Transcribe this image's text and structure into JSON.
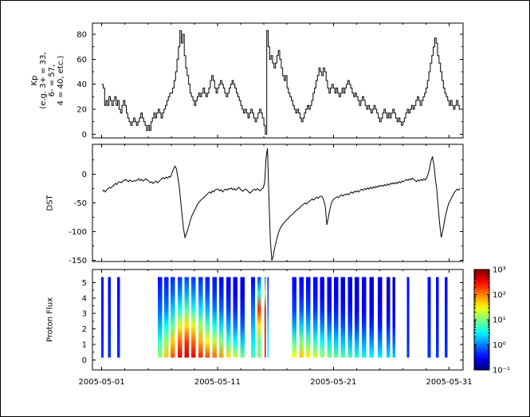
{
  "figure": {
    "background": "#ffffff",
    "frame_color": "#000000",
    "line_color": "#000000"
  },
  "x_axis": {
    "domain_days": [
      0.2,
      32.2
    ],
    "ticks": [
      {
        "day": 1,
        "label": "2005-05-01"
      },
      {
        "day": 11,
        "label": "2005-05-11"
      },
      {
        "day": 21,
        "label": "2005-05-21"
      },
      {
        "day": 31,
        "label": "2005-05-31"
      }
    ],
    "minor_days": [
      3,
      5,
      7,
      9,
      13,
      15,
      17,
      19,
      23,
      25,
      27,
      29
    ]
  },
  "chart_data": [
    {
      "type": "line",
      "panel": "kp",
      "step_mode": true,
      "ylabel_lines": [
        "Kp",
        "(e.g. 3+ = 33,",
        "6- = 57,",
        "4 = 40, etc.)"
      ],
      "ylim": [
        -3,
        89
      ],
      "yticks": [
        0,
        20,
        40,
        60,
        80
      ],
      "yminor": [
        10,
        30,
        50,
        70
      ],
      "x_start_day": 1.0,
      "x_step_days": 0.125,
      "values": [
        40,
        37,
        23,
        27,
        23,
        30,
        27,
        23,
        27,
        30,
        23,
        27,
        20,
        17,
        23,
        27,
        23,
        17,
        13,
        10,
        7,
        10,
        13,
        10,
        7,
        10,
        13,
        17,
        13,
        10,
        7,
        3,
        7,
        3,
        10,
        13,
        17,
        13,
        17,
        20,
        17,
        13,
        17,
        20,
        23,
        27,
        30,
        33,
        33,
        37,
        43,
        50,
        60,
        70,
        83,
        73,
        80,
        63,
        53,
        47,
        40,
        33,
        30,
        27,
        23,
        27,
        30,
        33,
        30,
        33,
        37,
        33,
        30,
        33,
        37,
        43,
        47,
        43,
        37,
        33,
        37,
        40,
        43,
        40,
        37,
        33,
        30,
        33,
        37,
        40,
        43,
        40,
        37,
        33,
        30,
        27,
        23,
        20,
        17,
        20,
        17,
        13,
        17,
        20,
        17,
        13,
        10,
        13,
        17,
        20,
        17,
        13,
        7,
        0,
        83,
        70,
        60,
        63,
        57,
        53,
        57,
        63,
        67,
        60,
        53,
        47,
        43,
        47,
        37,
        33,
        30,
        27,
        23,
        20,
        17,
        20,
        17,
        13,
        10,
        13,
        17,
        20,
        23,
        20,
        23,
        27,
        33,
        37,
        43,
        47,
        53,
        50,
        47,
        53,
        50,
        43,
        37,
        33,
        37,
        40,
        37,
        33,
        37,
        33,
        30,
        33,
        37,
        33,
        37,
        40,
        43,
        40,
        37,
        33,
        30,
        33,
        30,
        27,
        23,
        27,
        30,
        27,
        23,
        20,
        23,
        20,
        17,
        20,
        23,
        20,
        17,
        13,
        10,
        13,
        17,
        20,
        17,
        13,
        17,
        13,
        17,
        20,
        17,
        13,
        10,
        13,
        10,
        7,
        10,
        13,
        17,
        20,
        17,
        20,
        23,
        20,
        23,
        27,
        30,
        27,
        23,
        27,
        30,
        33,
        37,
        43,
        50,
        57,
        63,
        70,
        77,
        73,
        63,
        57,
        50,
        43,
        37,
        33,
        30,
        27,
        23,
        27,
        23,
        20,
        23,
        27,
        23,
        20
      ]
    },
    {
      "type": "line",
      "panel": "dst",
      "step_mode": false,
      "ylabel_lines": [
        "DST"
      ],
      "ylim": [
        -152,
        52
      ],
      "yticks": [
        0,
        -50,
        -100,
        -150
      ],
      "yminor": [
        25,
        -25,
        -75,
        -125
      ],
      "x_start_day": 1.0,
      "x_step_days": 0.125,
      "values": [
        -30,
        -28,
        -31,
        -27,
        -25,
        -23,
        -24,
        -21,
        -19,
        -16,
        -18,
        -14,
        -13,
        -15,
        -12,
        -11,
        -9,
        -11,
        -13,
        -10,
        -12,
        -13,
        -11,
        -12,
        -10,
        -8,
        -11,
        -9,
        -12,
        -10,
        -8,
        -10,
        -12,
        -15,
        -13,
        -16,
        -14,
        -12,
        -15,
        -13,
        -10,
        -8,
        -6,
        -8,
        -5,
        -7,
        -4,
        -5,
        2,
        8,
        14,
        10,
        -4,
        -20,
        -45,
        -70,
        -95,
        -110,
        -104,
        -96,
        -87,
        -78,
        -71,
        -66,
        -61,
        -56,
        -51,
        -48,
        -45,
        -43,
        -41,
        -38,
        -36,
        -33,
        -31,
        -33,
        -29,
        -31,
        -27,
        -26,
        -26,
        -29,
        -27,
        -31,
        -28,
        -26,
        -28,
        -25,
        -26,
        -24,
        -27,
        -25,
        -28,
        -26,
        -23,
        -25,
        -28,
        -30,
        -27,
        -26,
        -28,
        -31,
        -33,
        -30,
        -28,
        -26,
        -28,
        -25,
        -27,
        -29,
        -26,
        -24,
        -15,
        28,
        45,
        -40,
        -115,
        -150,
        -142,
        -128,
        -117,
        -107,
        -99,
        -93,
        -89,
        -86,
        -83,
        -80,
        -78,
        -75,
        -72,
        -70,
        -68,
        -65,
        -63,
        -61,
        -59,
        -56,
        -54,
        -52,
        -50,
        -52,
        -49,
        -47,
        -45,
        -43,
        -45,
        -42,
        -40,
        -42,
        -39,
        -38,
        -40,
        -46,
        -58,
        -88,
        -76,
        -62,
        -52,
        -46,
        -43,
        -41,
        -39,
        -41,
        -38,
        -36,
        -38,
        -35,
        -36,
        -34,
        -36,
        -33,
        -31,
        -33,
        -30,
        -31,
        -29,
        -31,
        -28,
        -26,
        -28,
        -25,
        -27,
        -24,
        -26,
        -23,
        -25,
        -22,
        -24,
        -21,
        -23,
        -20,
        -21,
        -19,
        -21,
        -18,
        -20,
        -17,
        -19,
        -16,
        -17,
        -15,
        -17,
        -14,
        -16,
        -13,
        -15,
        -12,
        -13,
        -11,
        -9,
        -11,
        -8,
        -10,
        -7,
        -9,
        -11,
        -13,
        -10,
        -12,
        -9,
        -11,
        -8,
        -10,
        -6,
        0,
        10,
        24,
        30,
        16,
        -8,
        -28,
        -58,
        -88,
        -110,
        -100,
        -86,
        -72,
        -62,
        -52,
        -47,
        -42,
        -37,
        -32,
        -29,
        -26,
        -28,
        -25
      ]
    },
    {
      "type": "heatmap",
      "panel": "proton_flux",
      "ylabel_lines": [
        "Proton Flux"
      ],
      "ylim": [
        -0.65,
        5.85
      ],
      "yticks": [
        0,
        1,
        2,
        3,
        4,
        5
      ],
      "yminor": [
        0.5,
        1.5,
        2.5,
        3.5,
        4.5
      ],
      "bar_y_range": [
        0.15,
        5.35
      ],
      "color_scale": {
        "min_log": -1,
        "max_log": 3,
        "tick_values": [
          3,
          2,
          1,
          0,
          -1
        ],
        "tick_labels": [
          "10³",
          "10²",
          "10¹",
          "10⁰",
          "10⁻¹"
        ]
      },
      "stripes": [
        {
          "day": 0.95,
          "w": 0.22,
          "p": [
            -0.3,
            -0.35,
            -0.4,
            -0.4,
            -0.45,
            -0.45
          ]
        },
        {
          "day": 1.55,
          "w": 0.22,
          "p": [
            -0.3,
            -0.35,
            -0.4,
            -0.4,
            -0.45,
            -0.45
          ]
        },
        {
          "day": 2.35,
          "w": 0.22,
          "p": [
            -0.3,
            -0.35,
            -0.4,
            -0.4,
            -0.45,
            -0.45
          ]
        },
        {
          "day": 5.85,
          "w": 0.38,
          "p": [
            1.1,
            0.7,
            0.2,
            -0.1,
            -0.3,
            -0.45
          ]
        },
        {
          "day": 6.4,
          "w": 0.38,
          "p": [
            1.7,
            1.1,
            0.5,
            0.0,
            -0.25,
            -0.4
          ]
        },
        {
          "day": 6.95,
          "w": 0.38,
          "p": [
            2.2,
            1.7,
            0.9,
            0.3,
            -0.1,
            -0.35
          ]
        },
        {
          "day": 7.55,
          "w": 0.38,
          "p": [
            2.6,
            2.1,
            1.4,
            0.6,
            0.05,
            -0.3
          ]
        },
        {
          "day": 8.15,
          "w": 0.38,
          "p": [
            2.7,
            2.3,
            1.6,
            0.8,
            0.15,
            -0.25
          ]
        },
        {
          "day": 8.75,
          "w": 0.38,
          "p": [
            2.6,
            2.1,
            1.4,
            0.6,
            0.05,
            -0.3
          ]
        },
        {
          "day": 9.35,
          "w": 0.38,
          "p": [
            2.4,
            1.8,
            1.1,
            0.4,
            -0.05,
            -0.35
          ]
        },
        {
          "day": 9.95,
          "w": 0.38,
          "p": [
            2.25,
            1.5,
            0.8,
            0.2,
            -0.2,
            -0.4
          ]
        },
        {
          "day": 10.55,
          "w": 0.38,
          "p": [
            2.1,
            1.25,
            0.55,
            0.0,
            -0.3,
            -0.45
          ]
        },
        {
          "day": 11.15,
          "w": 0.38,
          "p": [
            1.9,
            1.0,
            0.35,
            -0.1,
            -0.35,
            -0.5
          ]
        },
        {
          "day": 11.75,
          "w": 0.38,
          "p": [
            1.6,
            0.75,
            0.15,
            -0.25,
            -0.45,
            -0.5
          ]
        },
        {
          "day": 12.35,
          "w": 0.38,
          "p": [
            1.3,
            0.5,
            0.0,
            -0.35,
            -0.5,
            -0.55
          ]
        },
        {
          "day": 12.95,
          "w": 0.38,
          "p": [
            1.0,
            0.3,
            -0.15,
            -0.4,
            -0.55,
            -0.55
          ]
        },
        {
          "day": 13.9,
          "w": 0.35,
          "p": [
            0.8,
            0.45,
            0.2,
            -0.05,
            -0.3,
            -0.5
          ]
        },
        {
          "day": 14.45,
          "w": 0.3,
          "p": [
            1.0,
            0.9,
            1.6,
            2.3,
            0.6,
            -0.2
          ]
        },
        {
          "day": 15.05,
          "w": 0.12,
          "p": [
            2.5,
            2.6,
            2.8,
            2.9,
            1.2,
            0.0
          ]
        },
        {
          "day": 15.3,
          "w": 0.12,
          "p": [
            0.6,
            0.4,
            0.2,
            -0.1,
            -0.3,
            -0.5
          ]
        },
        {
          "day": 17.45,
          "w": 0.38,
          "p": [
            1.5,
            0.8,
            0.15,
            -0.25,
            -0.4,
            -0.5
          ]
        },
        {
          "day": 18.05,
          "w": 0.38,
          "p": [
            1.7,
            1.0,
            0.3,
            -0.15,
            -0.4,
            -0.5
          ]
        },
        {
          "day": 18.65,
          "w": 0.38,
          "p": [
            1.55,
            0.85,
            0.2,
            -0.2,
            -0.4,
            -0.5
          ]
        },
        {
          "day": 19.25,
          "w": 0.38,
          "p": [
            1.35,
            0.65,
            0.1,
            -0.3,
            -0.45,
            -0.5
          ]
        },
        {
          "day": 19.85,
          "w": 0.38,
          "p": [
            1.15,
            0.5,
            0.0,
            -0.35,
            -0.5,
            -0.55
          ]
        },
        {
          "day": 20.45,
          "w": 0.38,
          "p": [
            1.0,
            0.4,
            -0.1,
            -0.4,
            -0.5,
            -0.55
          ]
        },
        {
          "day": 21.05,
          "w": 0.38,
          "p": [
            0.9,
            0.3,
            -0.15,
            -0.4,
            -0.55,
            -0.6
          ]
        },
        {
          "day": 21.65,
          "w": 0.38,
          "p": [
            0.85,
            0.25,
            -0.2,
            -0.45,
            -0.55,
            -0.6
          ]
        },
        {
          "day": 22.25,
          "w": 0.38,
          "p": [
            0.75,
            0.2,
            -0.25,
            -0.45,
            -0.6,
            -0.6
          ]
        },
        {
          "day": 22.85,
          "w": 0.38,
          "p": [
            0.65,
            0.15,
            -0.3,
            -0.5,
            -0.6,
            -0.6
          ]
        },
        {
          "day": 23.45,
          "w": 0.38,
          "p": [
            0.55,
            0.1,
            -0.3,
            -0.5,
            -0.6,
            -0.65
          ]
        },
        {
          "day": 24.1,
          "w": 0.38,
          "p": [
            0.5,
            0.05,
            -0.35,
            -0.55,
            -0.65,
            -0.65
          ]
        },
        {
          "day": 24.85,
          "w": 0.38,
          "p": [
            0.45,
            0.0,
            -0.4,
            -0.55,
            -0.65,
            -0.65
          ]
        },
        {
          "day": 25.6,
          "w": 0.3,
          "p": [
            0.35,
            -0.05,
            -0.4,
            -0.6,
            -0.65,
            -0.7
          ]
        },
        {
          "day": 26.1,
          "w": 0.25,
          "p": [
            0.3,
            -0.1,
            -0.45,
            -0.6,
            -0.7,
            -0.7
          ]
        },
        {
          "day": 27.35,
          "w": 0.2,
          "p": [
            -0.3,
            -0.35,
            -0.4,
            -0.4,
            -0.45,
            -0.45
          ]
        },
        {
          "day": 29.15,
          "w": 0.25,
          "p": [
            -0.3,
            -0.35,
            -0.4,
            -0.4,
            -0.45,
            -0.45
          ]
        },
        {
          "day": 29.85,
          "w": 0.25,
          "p": [
            -0.3,
            -0.35,
            -0.4,
            -0.4,
            -0.45,
            -0.45
          ]
        },
        {
          "day": 30.6,
          "w": 0.25,
          "p": [
            -0.3,
            -0.35,
            -0.4,
            -0.4,
            -0.45,
            -0.45
          ]
        }
      ]
    }
  ]
}
